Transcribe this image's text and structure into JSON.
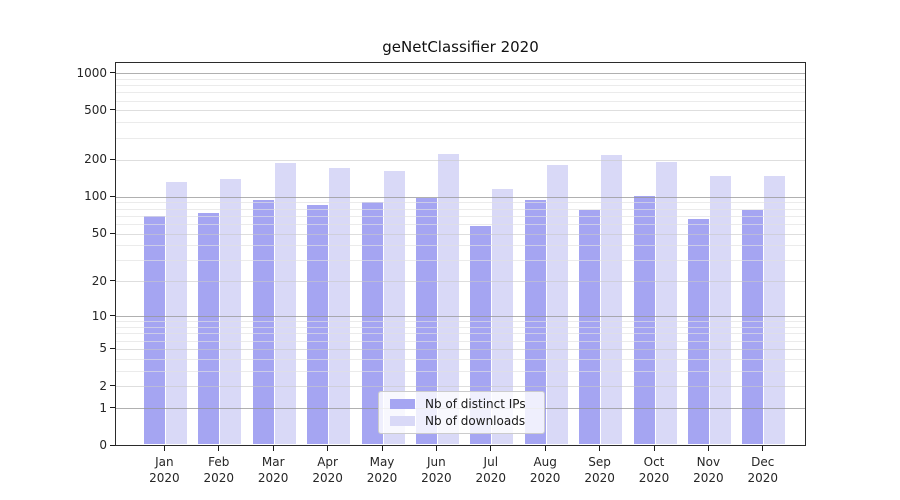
{
  "chart_data": {
    "type": "bar",
    "title": "geNetClassifier 2020",
    "categories": [
      "Jan",
      "Feb",
      "Mar",
      "Apr",
      "May",
      "Jun",
      "Jul",
      "Aug",
      "Sep",
      "Oct",
      "Nov",
      "Dec"
    ],
    "year_label": "2020",
    "series": [
      {
        "name": "Nb of distinct IPs",
        "color": "#a5a5f2",
        "values": [
          70,
          75,
          94,
          87,
          92,
          98,
          58,
          95,
          78,
          102,
          67,
          79
        ]
      },
      {
        "name": "Nb of downloads",
        "color": "#d9d9f7",
        "values": [
          132,
          140,
          190,
          172,
          164,
          222,
          117,
          181,
          221,
          194,
          150,
          150
        ]
      }
    ],
    "yscale": "log10(1+x)",
    "yticks": [
      0,
      1,
      2,
      5,
      10,
      20,
      50,
      100,
      200,
      500,
      1000
    ],
    "minor_gridlines": [
      3,
      4,
      6,
      7,
      8,
      9,
      30,
      40,
      60,
      70,
      80,
      90,
      300,
      400,
      600,
      700,
      800,
      900
    ],
    "ylim": [
      0,
      1216
    ],
    "grid": true,
    "legend_position": "inside-bottom-center",
    "xlabel": "",
    "ylabel": ""
  }
}
